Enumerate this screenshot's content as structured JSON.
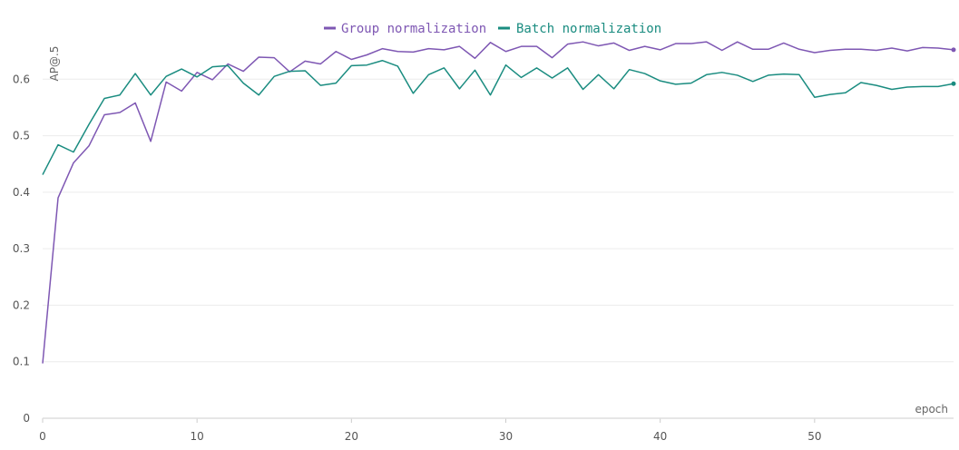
{
  "chart_data": {
    "type": "line",
    "title": "",
    "xlabel": "epoch",
    "ylabel": "AP@.5",
    "xlim": [
      0,
      59
    ],
    "ylim": [
      0,
      0.7
    ],
    "x_ticks": [
      0,
      10,
      20,
      30,
      40,
      50
    ],
    "y_ticks": [
      0,
      0.1,
      0.2,
      0.3,
      0.4,
      0.5,
      0.6
    ],
    "grid": true,
    "legend": "top-center",
    "x": [
      0,
      1,
      2,
      3,
      4,
      5,
      6,
      7,
      8,
      9,
      10,
      11,
      12,
      13,
      14,
      15,
      16,
      17,
      18,
      19,
      20,
      21,
      22,
      23,
      24,
      25,
      26,
      27,
      28,
      29,
      30,
      31,
      32,
      33,
      34,
      35,
      36,
      37,
      38,
      39,
      40,
      41,
      42,
      43,
      44,
      45,
      46,
      47,
      48,
      49,
      50,
      51,
      52,
      53,
      54,
      55,
      56,
      57,
      58,
      59
    ],
    "series": [
      {
        "name": "Group normalization",
        "color": "#7e57b3",
        "values": [
          0.097,
          0.39,
          0.452,
          0.482,
          0.537,
          0.541,
          0.558,
          0.49,
          0.595,
          0.579,
          0.612,
          0.599,
          0.627,
          0.614,
          0.639,
          0.638,
          0.613,
          0.632,
          0.627,
          0.649,
          0.635,
          0.643,
          0.654,
          0.649,
          0.648,
          0.654,
          0.652,
          0.658,
          0.637,
          0.665,
          0.649,
          0.658,
          0.658,
          0.638,
          0.662,
          0.666,
          0.659,
          0.664,
          0.651,
          0.658,
          0.652,
          0.663,
          0.663,
          0.666,
          0.651,
          0.666,
          0.653,
          0.653,
          0.664,
          0.653,
          0.647,
          0.651,
          0.653,
          0.653,
          0.651,
          0.655,
          0.65,
          0.656,
          0.655,
          0.652
        ]
      },
      {
        "name": "Batch normalization",
        "color": "#1a8c80",
        "values": [
          0.431,
          0.484,
          0.471,
          0.52,
          0.566,
          0.572,
          0.61,
          0.572,
          0.605,
          0.618,
          0.604,
          0.622,
          0.624,
          0.593,
          0.572,
          0.605,
          0.614,
          0.615,
          0.589,
          0.593,
          0.624,
          0.625,
          0.633,
          0.623,
          0.575,
          0.608,
          0.62,
          0.583,
          0.616,
          0.572,
          0.625,
          0.603,
          0.62,
          0.602,
          0.62,
          0.582,
          0.608,
          0.583,
          0.617,
          0.61,
          0.597,
          0.591,
          0.593,
          0.608,
          0.612,
          0.607,
          0.596,
          0.607,
          0.609,
          0.608,
          0.568,
          0.573,
          0.576,
          0.594,
          0.589,
          0.582,
          0.586,
          0.587,
          0.587,
          0.592
        ]
      }
    ]
  }
}
